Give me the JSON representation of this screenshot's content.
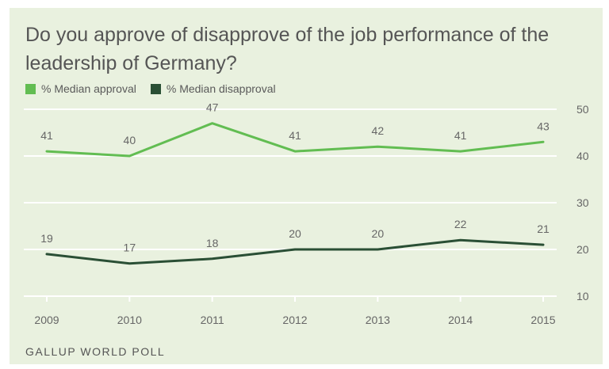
{
  "chart_data": {
    "type": "line",
    "title": "Do you approve of disapprove of the job performance of the leadership of Germany?",
    "x": [
      "2009",
      "2010",
      "2011",
      "2012",
      "2013",
      "2014",
      "2015"
    ],
    "series": [
      {
        "name": "% Median approval",
        "color": "#62bd52",
        "values": [
          41,
          40,
          47,
          41,
          42,
          41,
          43
        ]
      },
      {
        "name": "% Median disapproval",
        "color": "#2a4f35",
        "values": [
          19,
          17,
          18,
          20,
          20,
          22,
          21
        ]
      }
    ],
    "yticks": [
      50,
      40,
      30,
      20,
      10
    ],
    "ylim": [
      10,
      50
    ],
    "grid": true,
    "legend": "top-left",
    "source": "GALLUP WORLD POLL"
  }
}
